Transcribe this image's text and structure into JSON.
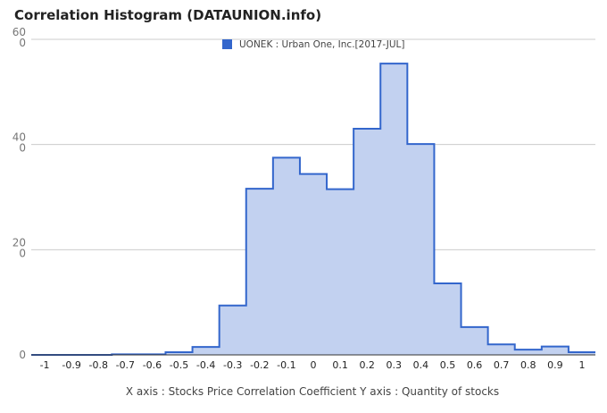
{
  "title": "Correlation Histogram (DATAUNION.info)",
  "chart_data": {
    "type": "area",
    "title": "Correlation Histogram (DATAUNION.info)",
    "xlabel": "X axis : Stocks Price Correlation Coefficient  Y axis : Quantity of stocks",
    "ylabel": "",
    "legend": {
      "position": "top",
      "entries": [
        "UONEK : Urban One, Inc.[2017-JUL]"
      ]
    },
    "x_ticks": [
      "-1",
      "-0.9",
      "-0.8",
      "-0.7",
      "-0.6",
      "-0.5",
      "-0.4",
      "-0.3",
      "-0.2",
      "-0.1",
      "0",
      "0.1",
      "0.2",
      "0.3",
      "0.4",
      "0.5",
      "0.6",
      "0.7",
      "0.8",
      "0.9",
      "1"
    ],
    "y_ticks": [
      "0",
      "200",
      "400",
      "600"
    ],
    "xlim": [
      -1.05,
      1.05
    ],
    "ylim": [
      0,
      600
    ],
    "grid": true,
    "series": [
      {
        "name": "UONEK : Urban One, Inc.[2017-JUL]",
        "color": "#3366cc",
        "fill": "#c2d1f0",
        "x": [
          -1,
          -0.9,
          -0.8,
          -0.7,
          -0.6,
          -0.5,
          -0.4,
          -0.3,
          -0.2,
          -0.1,
          0,
          0.1,
          0.2,
          0.3,
          0.4,
          0.5,
          0.6,
          0.7,
          0.8,
          0.9,
          1
        ],
        "values": [
          0,
          0,
          0,
          1,
          1,
          5,
          15,
          94,
          316,
          375,
          344,
          315,
          430,
          554,
          401,
          136,
          53,
          20,
          10,
          16,
          5
        ]
      }
    ]
  }
}
